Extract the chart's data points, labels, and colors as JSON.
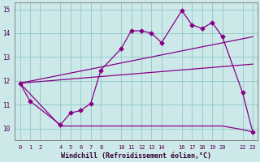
{
  "xlabel": "Windchill (Refroidissement éolien,°C)",
  "background_color": "#cce8e8",
  "grid_color": "#99cccc",
  "line_color": "#880088",
  "xlim": [
    -0.5,
    23.5
  ],
  "ylim": [
    9.5,
    15.3
  ],
  "xticks": [
    0,
    1,
    2,
    4,
    5,
    6,
    7,
    8,
    10,
    11,
    12,
    13,
    14,
    16,
    17,
    18,
    19,
    20,
    22,
    23
  ],
  "yticks": [
    10,
    11,
    12,
    13,
    14,
    15
  ],
  "line1_x": [
    0,
    1,
    4,
    5,
    6,
    7,
    8,
    10,
    11,
    12,
    13,
    14,
    16,
    17,
    18,
    19,
    20,
    22,
    23
  ],
  "line1_y": [
    11.9,
    11.15,
    10.15,
    10.65,
    10.75,
    11.05,
    12.45,
    13.35,
    14.1,
    14.1,
    14.0,
    13.6,
    14.95,
    14.35,
    14.2,
    14.45,
    13.85,
    11.5,
    9.85
  ],
  "line2_x": [
    0,
    4,
    20,
    22,
    23
  ],
  "line2_y": [
    11.9,
    10.1,
    10.1,
    9.95,
    9.85
  ],
  "line3_x": [
    0,
    23
  ],
  "line3_y": [
    11.9,
    13.85
  ],
  "line4_x": [
    0,
    23
  ],
  "line4_y": [
    11.9,
    12.7
  ]
}
